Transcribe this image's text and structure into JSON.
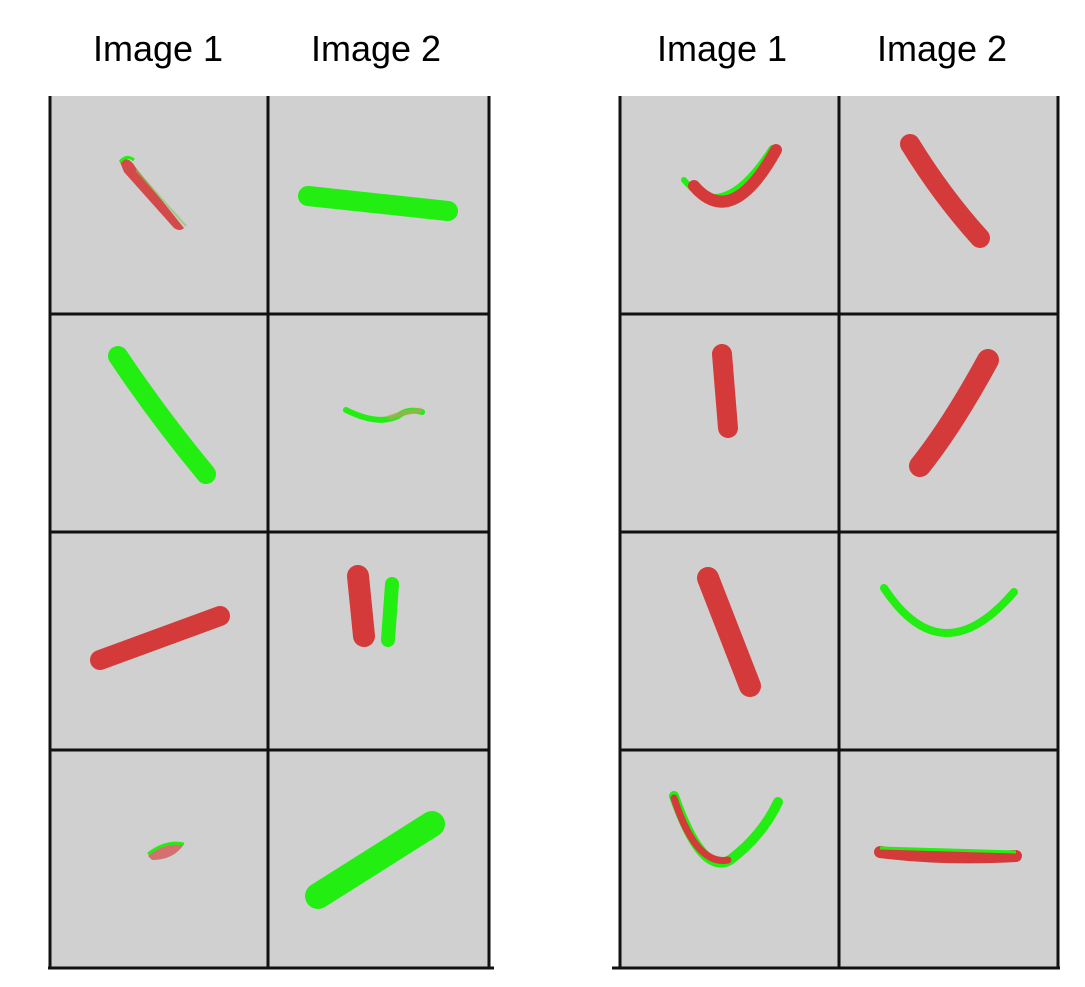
{
  "panels": [
    {
      "headers": [
        "Image 1",
        "Image 2"
      ],
      "cells": [
        [
          "red-stroke",
          "green-bar"
        ],
        [
          "green-bar",
          "green-red-curve"
        ],
        [
          "red-bar",
          "red-green-folded"
        ],
        [
          "red-green-blob",
          "green-bar"
        ]
      ]
    },
    {
      "headers": [
        "Image 1",
        "Image 2"
      ],
      "cells": [
        [
          "green-red-arc",
          "red-bar"
        ],
        [
          "red-bar",
          "red-bar"
        ],
        [
          "red-bar",
          "green-arc"
        ],
        [
          "red-green-u-curve",
          "red-green-line"
        ]
      ]
    }
  ],
  "colors": {
    "cell_bg": "#d0d0d0",
    "grid": "#111111",
    "red": "#d43a3a",
    "green": "#22ee11"
  }
}
